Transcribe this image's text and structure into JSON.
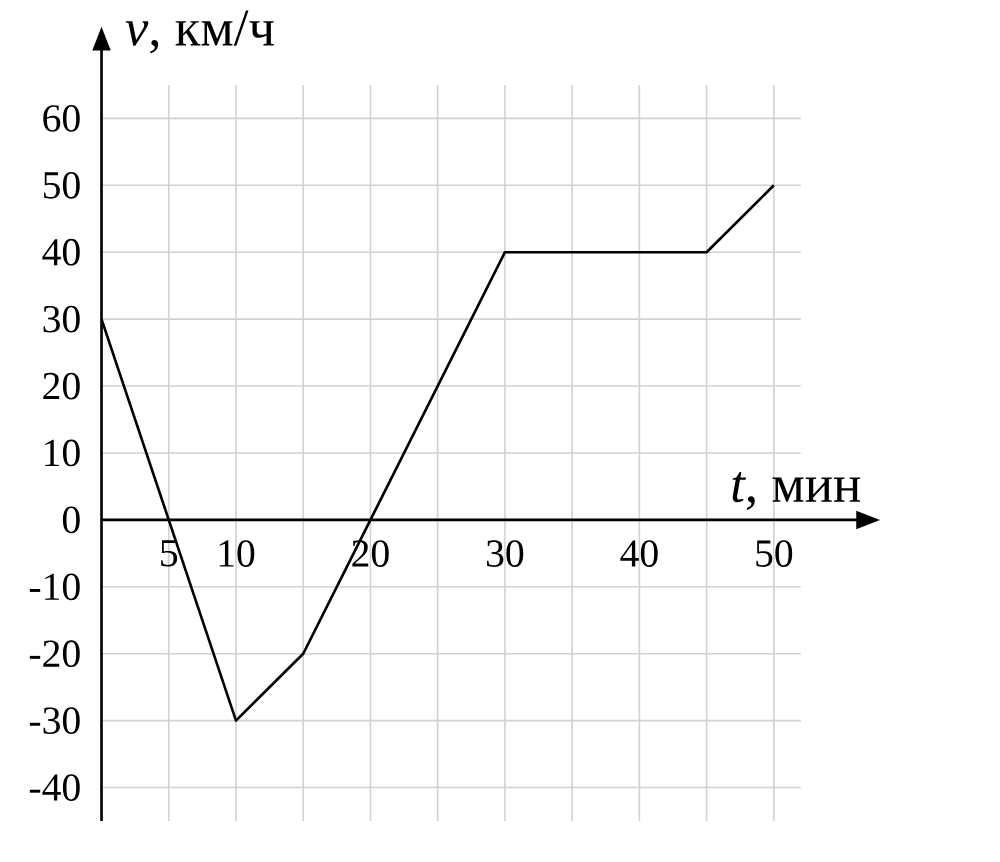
{
  "chart_data": {
    "type": "line",
    "xlabel": "*t*, мин",
    "ylabel": "*v*, км/ч",
    "x": [
      0,
      5,
      10,
      15,
      20,
      30,
      45,
      50
    ],
    "series": [
      {
        "color": "#000000",
        "values": [
          30,
          0,
          -30,
          -20,
          0,
          40,
          40,
          50
        ]
      }
    ],
    "xlim": [
      0,
      52
    ],
    "ylim": [
      -45,
      65
    ],
    "xticks": [
      5,
      10,
      {
        "value": 15,
        "label": null
      },
      20,
      {
        "value": 25,
        "label": null
      },
      30,
      {
        "value": 35,
        "label": null
      },
      40,
      {
        "value": 45,
        "label": null
      },
      50
    ],
    "yticks": [
      -40,
      -30,
      -20,
      -10,
      0,
      10,
      20,
      30,
      40,
      50,
      60
    ],
    "grid": true,
    "marker": "none",
    "line_style": "solid"
  }
}
